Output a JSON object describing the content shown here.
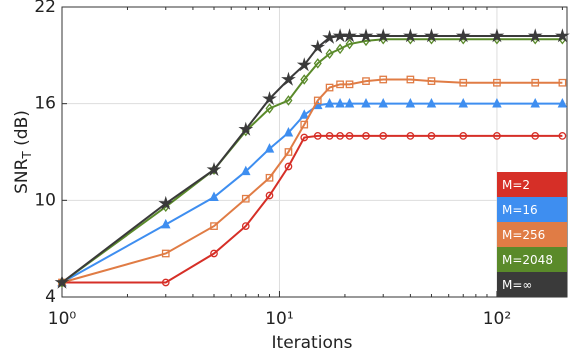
{
  "chart_data": {
    "type": "line",
    "xlabel": "Iterations",
    "ylabel": [
      "SNR",
      "T",
      " (dB)"
    ],
    "x": [
      1,
      3,
      5,
      7,
      9,
      11,
      13,
      15,
      17,
      19,
      21,
      25,
      30,
      40,
      50,
      70,
      100,
      150,
      200
    ],
    "series": [
      {
        "name": "M=2",
        "color": "#d62f27",
        "marker": "circle",
        "values": [
          4.9,
          4.9,
          6.7,
          8.4,
          10.3,
          12.1,
          13.9,
          14.0,
          14.0,
          14.0,
          14.0,
          14.0,
          14.0,
          14.0,
          14.0,
          14.0,
          14.0,
          14.0,
          14.0
        ]
      },
      {
        "name": "M=16",
        "color": "#3e8ef0",
        "marker": "triangle",
        "values": [
          4.9,
          8.5,
          10.2,
          11.8,
          13.2,
          14.2,
          15.3,
          15.9,
          16.0,
          16.0,
          16.0,
          16.0,
          16.0,
          16.0,
          16.0,
          16.0,
          16.0,
          16.0,
          16.0
        ]
      },
      {
        "name": "M=256",
        "color": "#e07c45",
        "marker": "square",
        "values": [
          4.9,
          6.7,
          8.4,
          10.1,
          11.4,
          13.0,
          14.7,
          16.2,
          17.0,
          17.2,
          17.2,
          17.4,
          17.5,
          17.5,
          17.4,
          17.3,
          17.3,
          17.3,
          17.3
        ]
      },
      {
        "name": "M=2048",
        "color": "#5a8a2a",
        "marker": "diamond",
        "values": [
          4.9,
          9.6,
          11.9,
          14.3,
          15.7,
          16.2,
          17.5,
          18.5,
          19.1,
          19.4,
          19.7,
          19.9,
          20.0,
          20.0,
          20.0,
          20.0,
          20.0,
          20.0,
          20.0
        ]
      },
      {
        "name": "M=∞",
        "color": "#3a3a3a",
        "marker": "star",
        "values": [
          4.9,
          9.8,
          11.9,
          14.4,
          16.3,
          17.5,
          18.4,
          19.5,
          20.1,
          20.2,
          20.2,
          20.2,
          20.2,
          20.2,
          20.2,
          20.2,
          20.2,
          20.2,
          20.2
        ]
      }
    ],
    "xscale": "log",
    "xlim": [
      1,
      210
    ],
    "xticks": [
      {
        "value": 1,
        "label": "10⁰"
      },
      {
        "value": 10,
        "label": "10¹"
      },
      {
        "value": 100,
        "label": "10²"
      }
    ],
    "ylim": [
      4,
      22
    ],
    "yticks": [
      4,
      10,
      16,
      22
    ],
    "grid": true,
    "legend": "lower right"
  }
}
